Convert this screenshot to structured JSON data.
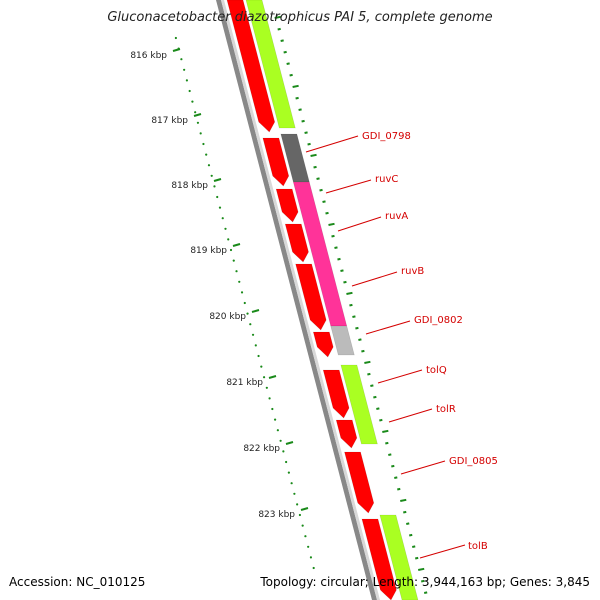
{
  "title": "Gluconacetobacter diazotrophicus PAI 5, complete genome",
  "accession": "Accession: NC_010125",
  "summary": "Topology: circular; Length: 3,944,163 bp; Genes: 3,845",
  "colors": {
    "forward_cds": "#ff0000",
    "reverse_cds": "#aaff22",
    "cog_gray": "#666666",
    "cog_pink": "#ff3399",
    "cog_lightgray": "#bbbbbb",
    "backbone": "#888888",
    "tick": "#1a8a1a",
    "label": "#d40000"
  },
  "ruler": [
    {
      "label": "816 kbp"
    },
    {
      "label": "817 kbp"
    },
    {
      "label": "818 kbp"
    },
    {
      "label": "819 kbp"
    },
    {
      "label": "820 kbp"
    },
    {
      "label": "821 kbp"
    },
    {
      "label": "822 kbp"
    },
    {
      "label": "823 kbp"
    }
  ],
  "gene_labels": [
    {
      "name": "GDI_0798"
    },
    {
      "name": "ruvC"
    },
    {
      "name": "ruvA"
    },
    {
      "name": "ruvB"
    },
    {
      "name": "GDI_0802"
    },
    {
      "name": "tolQ"
    },
    {
      "name": "tolR"
    },
    {
      "name": "GDI_0805"
    },
    {
      "name": "tolB"
    }
  ]
}
